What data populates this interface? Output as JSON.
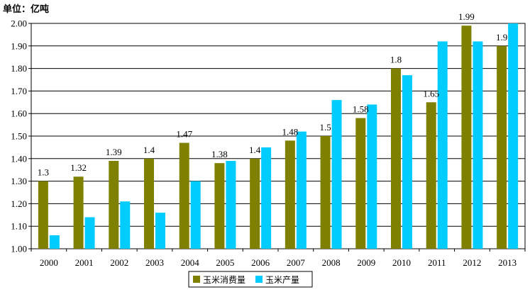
{
  "chart_data": {
    "type": "bar",
    "unit_label": "单位：亿吨",
    "categories": [
      "2000",
      "2001",
      "2002",
      "2003",
      "2004",
      "2005",
      "2006",
      "2007",
      "2008",
      "2009",
      "2010",
      "2011",
      "2012",
      "2013"
    ],
    "series": [
      {
        "name": "玉米消费量",
        "color": "#808000",
        "values": [
          1.3,
          1.32,
          1.39,
          1.4,
          1.47,
          1.38,
          1.4,
          1.48,
          1.5,
          1.58,
          1.8,
          1.65,
          1.99,
          1.9
        ],
        "data_labels": [
          "1.3",
          "1.32",
          "1.39",
          "1.4",
          "1.47",
          "1.38",
          "1.4",
          "1.48",
          "1.5",
          "1.58",
          "1.8",
          "1.65",
          "1.99",
          "1.9"
        ]
      },
      {
        "name": "玉米产量",
        "color": "#00CCFF",
        "values": [
          1.06,
          1.14,
          1.21,
          1.16,
          1.3,
          1.39,
          1.45,
          1.52,
          1.66,
          1.64,
          1.77,
          1.92,
          1.92,
          2.0
        ]
      }
    ],
    "ylim": [
      1.0,
      2.0
    ],
    "yticks": [
      1.0,
      1.1,
      1.2,
      1.3,
      1.4,
      1.5,
      1.6,
      1.7,
      1.8,
      1.9,
      2.0
    ],
    "ytick_labels": [
      "1.00",
      "1.10",
      "1.20",
      "1.30",
      "1.40",
      "1.50",
      "1.60",
      "1.70",
      "1.80",
      "1.90",
      "2.00"
    ],
    "grid": true,
    "legend_position": "bottom-center",
    "xlabel": "",
    "ylabel": ""
  }
}
